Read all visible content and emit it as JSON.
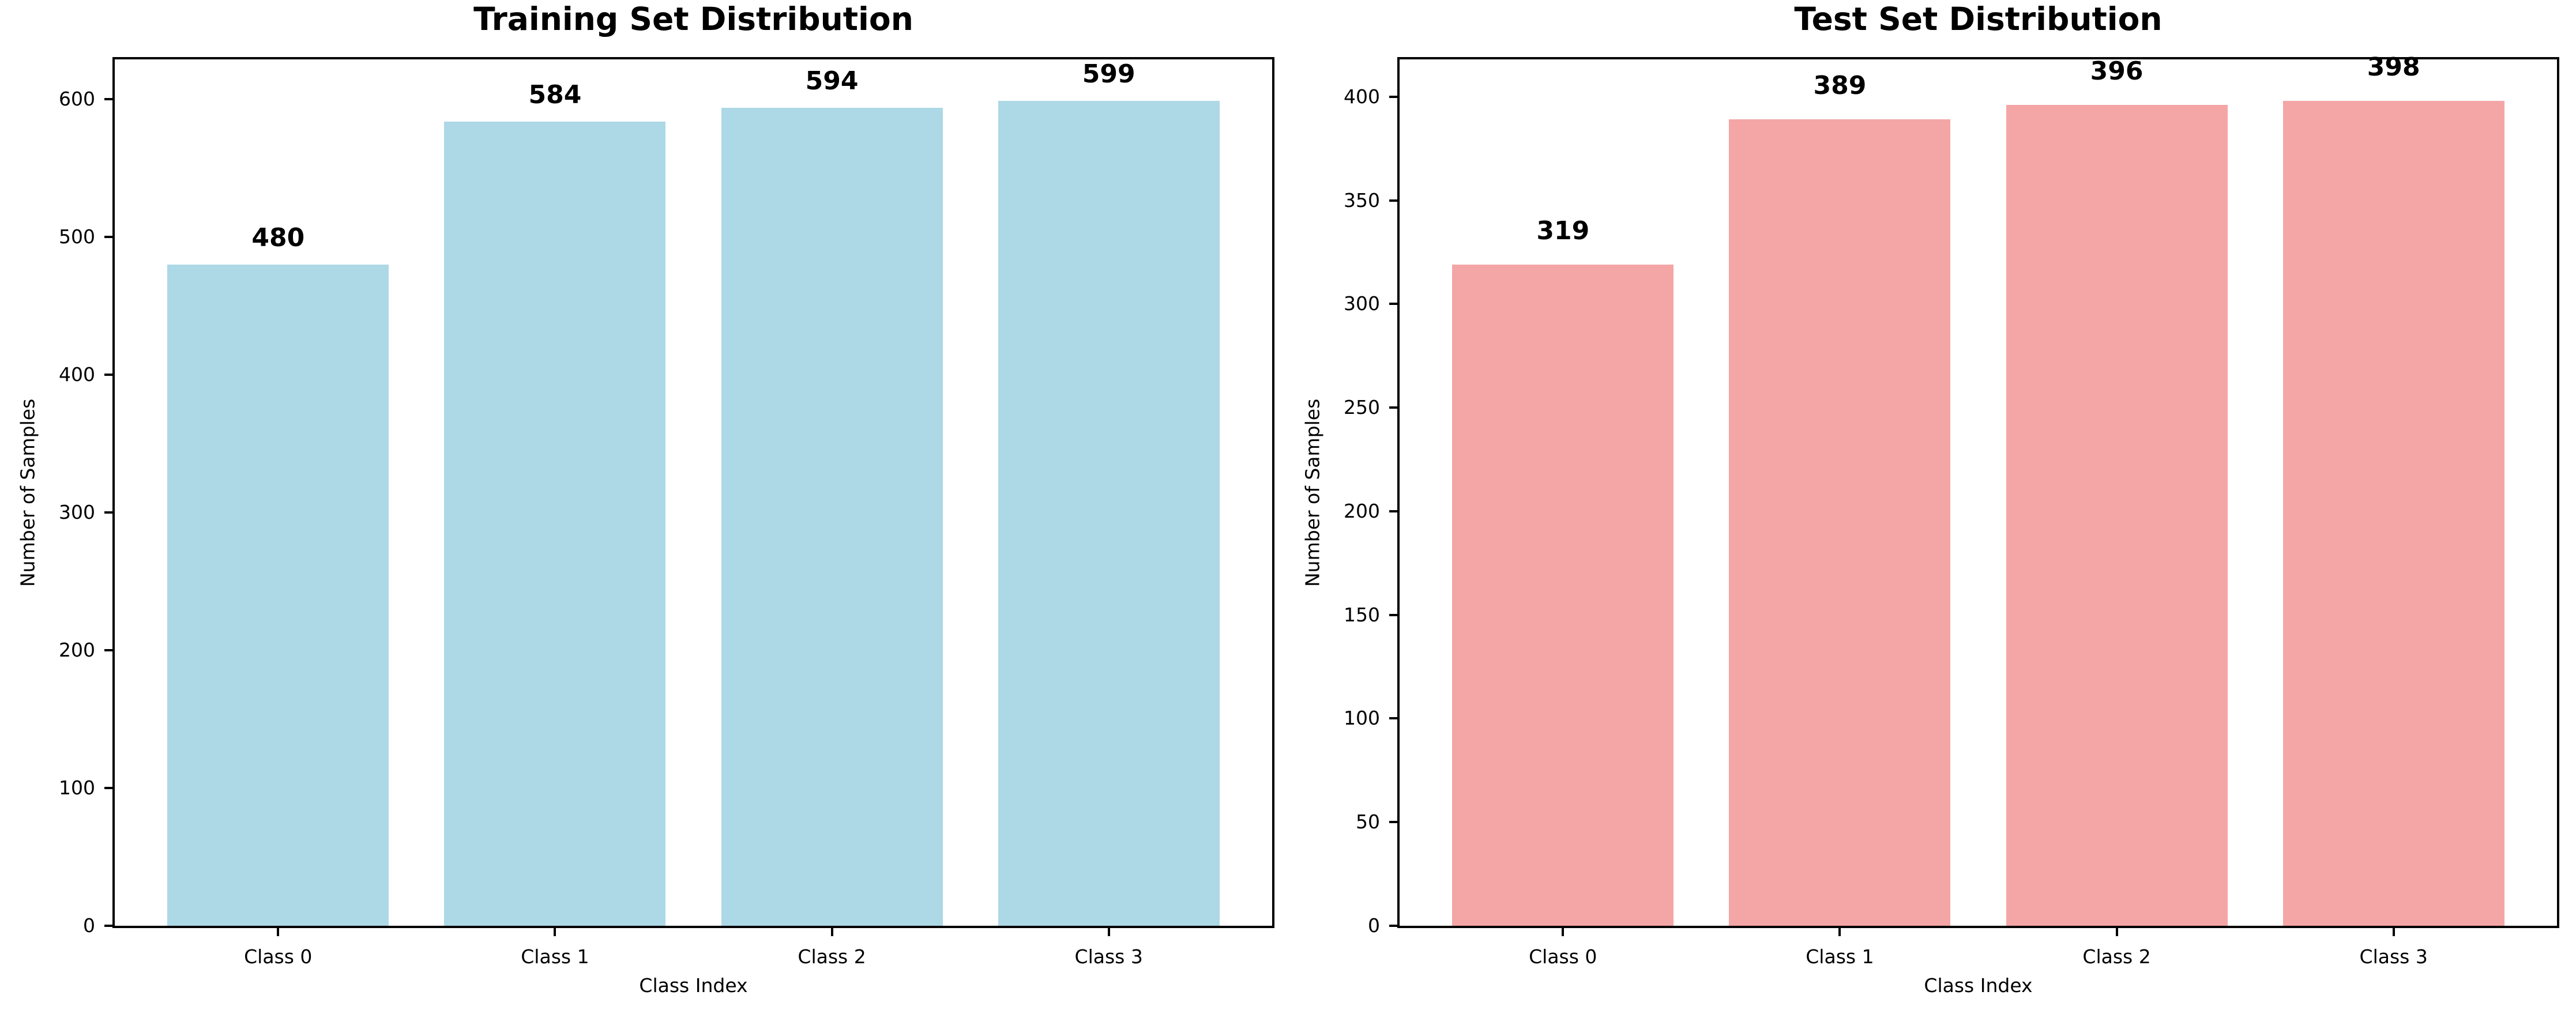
{
  "figure": {
    "background": "#ffffff",
    "text_color": "#000000",
    "axis_color": "#000000"
  },
  "chart_data": [
    {
      "type": "bar",
      "title": "Training Set Distribution",
      "xlabel": "Class Index",
      "ylabel": "Number of Samples",
      "categories": [
        "Class 0",
        "Class 1",
        "Class 2",
        "Class 3"
      ],
      "values": [
        480,
        584,
        594,
        599
      ],
      "value_labels": [
        "480",
        "584",
        "594",
        "599"
      ],
      "bar_color": "#ADD8E6",
      "ylim": [
        0,
        629
      ],
      "yticks": [
        0,
        100,
        200,
        300,
        400,
        500,
        600
      ],
      "grid": false,
      "legend": null
    },
    {
      "type": "bar",
      "title": "Test Set Distribution",
      "xlabel": "Class Index",
      "ylabel": "Number of Samples",
      "categories": [
        "Class 0",
        "Class 1",
        "Class 2",
        "Class 3"
      ],
      "values": [
        319,
        389,
        396,
        398
      ],
      "value_labels": [
        "319",
        "389",
        "396",
        "398"
      ],
      "bar_color": "#F4A5A5",
      "ylim": [
        0,
        418
      ],
      "yticks": [
        0,
        50,
        100,
        150,
        200,
        250,
        300,
        350,
        400
      ],
      "grid": false,
      "legend": null
    }
  ]
}
